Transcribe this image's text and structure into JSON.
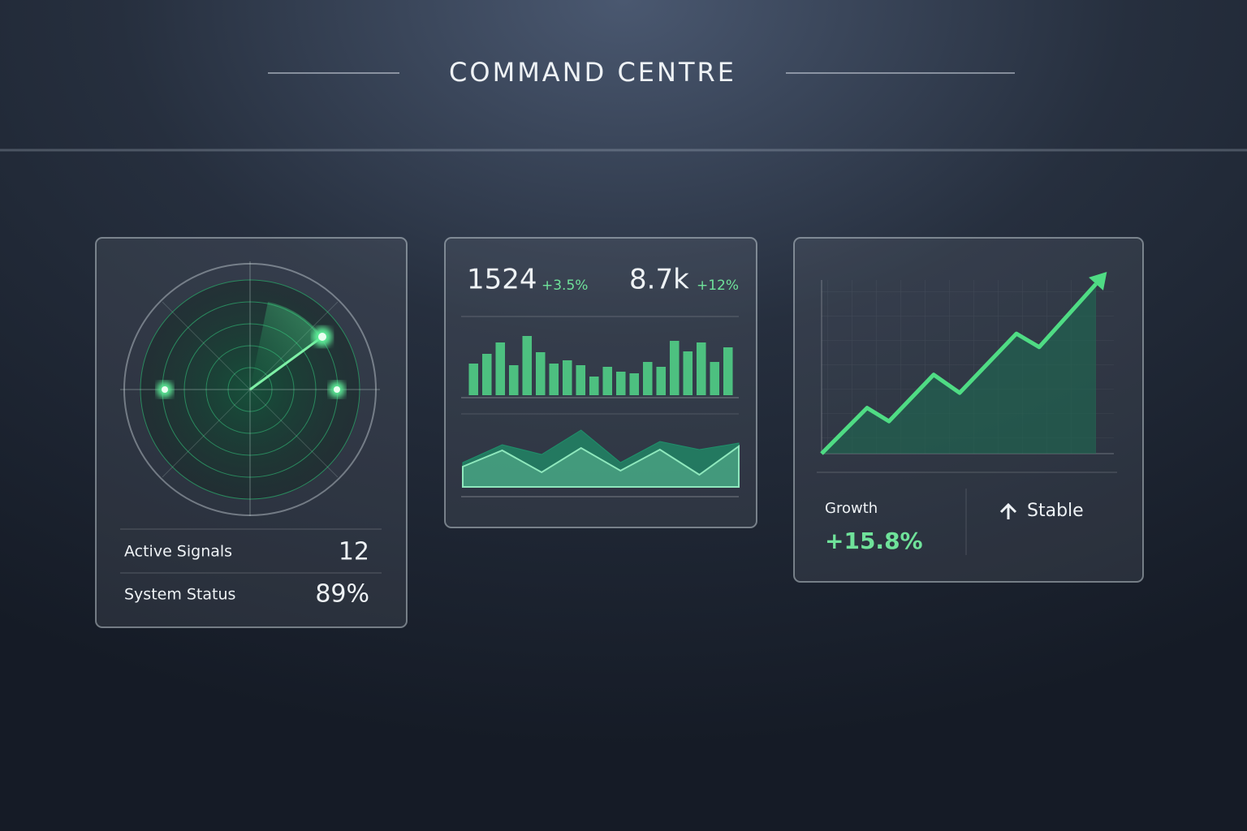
{
  "header": {
    "title": "COMMAND CENTRE"
  },
  "radar_card": {
    "rows": [
      {
        "label": "Active Signals",
        "value": "12"
      },
      {
        "label": "System Status",
        "value": "89%"
      }
    ]
  },
  "stats_card": {
    "metrics": [
      {
        "value": "1524",
        "change": "+3.5%"
      },
      {
        "value": "8.7k",
        "change": "+12%"
      }
    ]
  },
  "growth_card": {
    "label": "Growth",
    "value": "+15.8%",
    "status": "Stable"
  },
  "chart_data": [
    {
      "type": "bar",
      "categories": [
        null,
        null,
        null,
        null,
        null,
        null,
        null,
        null,
        null,
        null,
        null,
        null,
        null,
        null,
        null,
        null,
        null,
        null,
        null,
        null
      ],
      "values": [
        39,
        51,
        65,
        37,
        73,
        53,
        39,
        43,
        37,
        23,
        35,
        29,
        27,
        41,
        35,
        67,
        54,
        65,
        41,
        59
      ],
      "color": "#52d889",
      "ylim": [
        0,
        80
      ]
    },
    {
      "type": "area",
      "categories": [
        null,
        null,
        null,
        null,
        null,
        null,
        null,
        null
      ],
      "series": [
        {
          "color": "#1f8f6a",
          "values": [
            30,
            52,
            40,
            70,
            30,
            56,
            46,
            54
          ]
        },
        {
          "color": "#8fe8bd",
          "values": [
            25,
            45,
            18,
            48,
            20,
            46,
            15,
            50
          ]
        }
      ],
      "ylim": [
        0,
        80
      ]
    },
    {
      "type": "line",
      "x": [
        0,
        56,
        83,
        138,
        170,
        240,
        268,
        338
      ],
      "values": [
        0,
        58,
        41,
        100,
        77,
        152,
        135,
        215
      ],
      "color": "#4fdc84",
      "xlim": [
        0,
        360
      ],
      "ylim": [
        0,
        220
      ]
    }
  ]
}
